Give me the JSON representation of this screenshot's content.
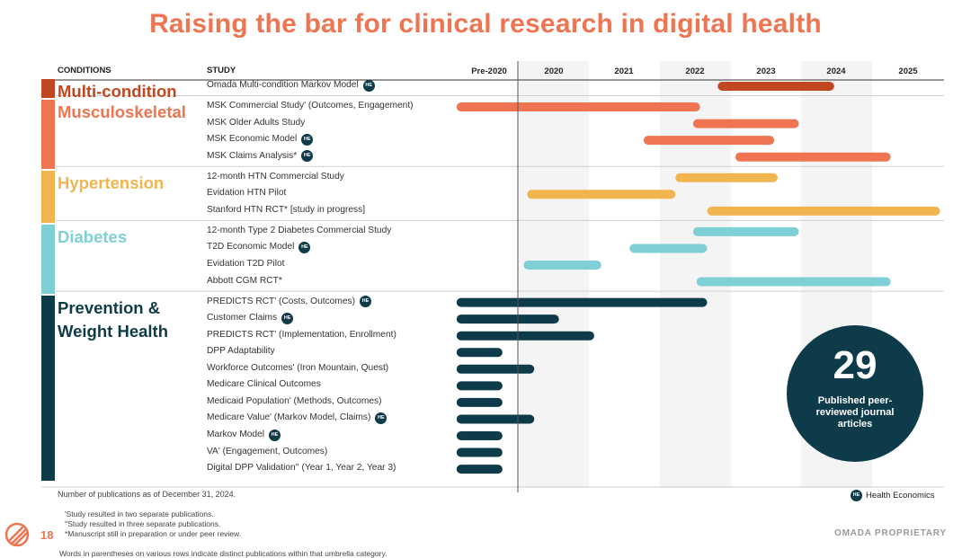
{
  "title": "Raising the bar for clinical research in digital health",
  "headers": {
    "conditions": "CONDITIONS",
    "study": "STUDY"
  },
  "chart_data": {
    "type": "gantt",
    "x_ticks": [
      "Pre-2020",
      "2020",
      "2021",
      "2022",
      "2023",
      "2024",
      "2025"
    ],
    "groups": [
      {
        "name": "Multi-condition",
        "color": "#c0471f",
        "studies": [
          {
            "label": "Omada Multi-condition Markov Model",
            "he": true,
            "start": 2022.35,
            "end": 2024.0
          }
        ]
      },
      {
        "name": "Musculoskeletal",
        "color": "#ef7552",
        "studies": [
          {
            "label": "MSK Commercial Study' (Outcomes, Engagement)",
            "he": false,
            "start": 2018.65,
            "end": 2022.1
          },
          {
            "label": "MSK Older Adults Study",
            "he": false,
            "start": 2022.0,
            "end": 2023.5
          },
          {
            "label": "MSK Economic Model",
            "he": true,
            "start": 2021.3,
            "end": 2023.15
          },
          {
            "label": "MSK Claims Analysis*",
            "he": true,
            "start": 2022.6,
            "end": 2024.8
          }
        ]
      },
      {
        "name": "Hypertension",
        "color": "#f0b54f",
        "studies": [
          {
            "label": "12-month HTN Commercial Study",
            "he": false,
            "start": 2021.75,
            "end": 2023.2
          },
          {
            "label": "Evidation HTN Pilot",
            "he": false,
            "start": 2019.65,
            "end": 2021.75
          },
          {
            "label": "Stanford HTN RCT* [study in progress]",
            "he": false,
            "start": 2022.2,
            "end": 2025.5
          }
        ]
      },
      {
        "name": "Diabetes",
        "color": "#7fd0d6",
        "studies": [
          {
            "label": "12-month Type 2 Diabetes Commercial Study",
            "he": false,
            "start": 2022.0,
            "end": 2023.5
          },
          {
            "label": "T2D Economic Model",
            "he": true,
            "start": 2021.1,
            "end": 2022.2
          },
          {
            "label": "Evidation T2D Pilot",
            "he": false,
            "start": 2019.6,
            "end": 2020.7
          },
          {
            "label": "Abbott CGM RCT*",
            "he": false,
            "start": 2022.05,
            "end": 2024.8
          }
        ]
      },
      {
        "name": "Prevention & Weight Health",
        "color": "#0d3b4a",
        "studies": [
          {
            "label": "PREDICTS RCT' (Costs, Outcomes)",
            "he": true,
            "start": 2018.65,
            "end": 2022.2
          },
          {
            "label": "Customer Claims",
            "he": true,
            "start": 2018.65,
            "end": 2020.1
          },
          {
            "label": "PREDICTS RCT' (Implementation, Enrollment)",
            "he": false,
            "start": 2018.65,
            "end": 2020.6
          },
          {
            "label": "DPP Adaptability",
            "he": false,
            "start": 2018.65,
            "end": 2019.3
          },
          {
            "label": "Workforce Outcomes' (Iron Mountain, Quest)",
            "he": false,
            "start": 2018.65,
            "end": 2019.75
          },
          {
            "label": "Medicare Clinical Outcomes",
            "he": false,
            "start": 2018.65,
            "end": 2019.3
          },
          {
            "label": "Medicaid Population' (Methods, Outcomes)",
            "he": false,
            "start": 2018.65,
            "end": 2019.3
          },
          {
            "label": "Medicare Value' (Markov Model, Claims)",
            "he": true,
            "start": 2018.65,
            "end": 2019.75
          },
          {
            "label": "Markov Model",
            "he": true,
            "start": 2018.65,
            "end": 2019.3
          },
          {
            "label": "VA' (Engagement, Outcomes)",
            "he": false,
            "start": 2018.65,
            "end": 2019.3
          },
          {
            "label": "Digital DPP Validation'' (Year 1, Year 2, Year 3)",
            "he": false,
            "start": 2018.65,
            "end": 2019.3
          }
        ]
      }
    ]
  },
  "circle": {
    "number": "29",
    "text": "Published peer-reviewed journal articles"
  },
  "he_badge": "HE",
  "legend_label": "Health Economics",
  "pub_note": "Number of publications as of December 31, 2024.",
  "footnotes": [
    "'Study resulted in two separate publications.",
    "''Study resulted in three separate publications.",
    "*Manuscript still in preparation or under peer review."
  ],
  "footnote_extra": "Words in parentheses on various rows indicate distinct publications within that umbrella category.",
  "page_number": "18",
  "proprietary": "OMADA PROPRIETARY"
}
